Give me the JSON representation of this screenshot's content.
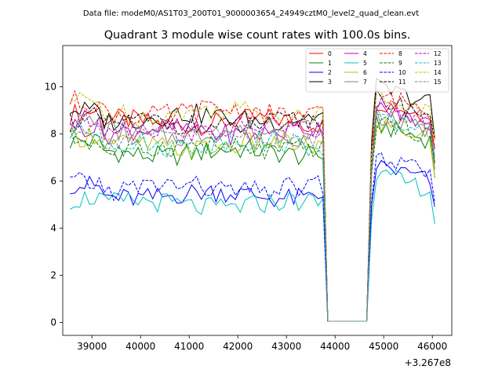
{
  "chart_data": {
    "type": "line",
    "suptitle": "Data file: modeM0/AS1T03_200T01_9000003654_24949cztM0_level2_quad_clean.evt",
    "title": "Quadrant 3 module wise count rates with 100.0s bins.",
    "xlabel": "",
    "ylabel": "",
    "x_offset_label": "+3.267e8",
    "xlim": [
      38400,
      46400
    ],
    "ylim": [
      -0.55,
      11.75
    ],
    "x_ticks": [
      39000,
      40000,
      41000,
      42000,
      43000,
      44000,
      45000,
      46000
    ],
    "x_tick_labels": [
      "39000",
      "40000",
      "41000",
      "42000",
      "43000",
      "44000",
      "45000",
      "46000"
    ],
    "y_ticks": [
      0,
      2,
      4,
      6,
      8,
      10
    ],
    "y_tick_labels": [
      "0",
      "2",
      "4",
      "6",
      "8",
      "10"
    ],
    "legend_position": "top-right",
    "x_start": 38550,
    "bin_size": 100,
    "n_bins": 76,
    "gap": {
      "drop_start": 43750,
      "low_from": 43850,
      "low_to": 44650,
      "rise_end": 44850,
      "low_level": 0.05
    },
    "series": [
      {
        "name": "0",
        "color": "#ff0000",
        "dash": false,
        "level": 8.5,
        "post_level": 9.3
      },
      {
        "name": "1",
        "color": "#008000",
        "dash": false,
        "level": 7.2,
        "post_level": 8.3
      },
      {
        "name": "2",
        "color": "#0000ff",
        "dash": false,
        "level": 5.4,
        "post_level": 6.6
      },
      {
        "name": "3",
        "color": "#000000",
        "dash": false,
        "level": 8.7,
        "post_level": 9.9
      },
      {
        "name": "4",
        "color": "#bf00bf",
        "dash": false,
        "level": 8.1,
        "post_level": 9.0
      },
      {
        "name": "5",
        "color": "#00bfbf",
        "dash": false,
        "level": 5.0,
        "post_level": 6.2
      },
      {
        "name": "6",
        "color": "#bfbf00",
        "dash": false,
        "level": 7.5,
        "post_level": 8.4
      },
      {
        "name": "7",
        "color": "#808080",
        "dash": false,
        "level": 8.0,
        "post_level": 8.7
      },
      {
        "name": "8",
        "color": "#ff0000",
        "dash": true,
        "level": 8.9,
        "post_level": 9.6
      },
      {
        "name": "9",
        "color": "#008000",
        "dash": true,
        "level": 7.4,
        "post_level": 8.5
      },
      {
        "name": "10",
        "color": "#0000ff",
        "dash": true,
        "level": 5.7,
        "post_level": 6.9
      },
      {
        "name": "11",
        "color": "#000000",
        "dash": true,
        "level": 8.4,
        "post_level": 9.4
      },
      {
        "name": "12",
        "color": "#bf00bf",
        "dash": true,
        "level": 8.2,
        "post_level": 9.1
      },
      {
        "name": "13",
        "color": "#00bfbf",
        "dash": true,
        "level": 7.6,
        "post_level": 8.6
      },
      {
        "name": "14",
        "color": "#bfbf00",
        "dash": true,
        "level": 8.9,
        "post_level": 9.5
      },
      {
        "name": "15",
        "color": "#808080",
        "dash": true,
        "level": 7.9,
        "post_level": 8.8
      }
    ]
  }
}
